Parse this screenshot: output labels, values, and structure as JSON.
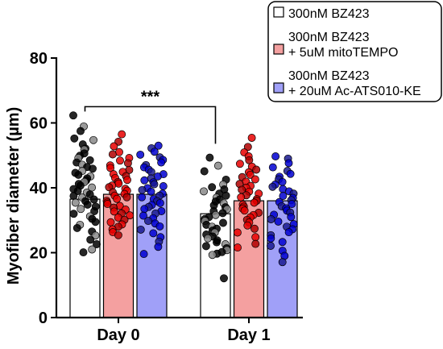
{
  "chart_data": {
    "type": "bar",
    "title": "",
    "xlabel": "",
    "ylabel": "Myofiber diameter  (µm)",
    "ylim": [
      0,
      80
    ],
    "yticks": [
      0,
      20,
      40,
      60,
      80
    ],
    "categories": [
      "Day 0",
      "Day 1"
    ],
    "series": [
      {
        "name": "300nM BZ423",
        "legend_lines": [
          "300nM BZ423"
        ],
        "values": [
          36.5,
          32.0
        ],
        "color": "#ffffff",
        "point_fill": "#000000",
        "point_alt_fill": "#888888",
        "points": [
          [
            62.3,
            58.9,
            57.5,
            55.2,
            54.7,
            53.4,
            52.1,
            51.8,
            50.6,
            49.9,
            49.2,
            48.5,
            47.8,
            47.1,
            46.4,
            45.9,
            45.2,
            44.6,
            44.0,
            43.5,
            42.9,
            42.3,
            41.8,
            41.2,
            40.7,
            40.1,
            39.6,
            39.0,
            38.5,
            38.0,
            37.5,
            37.0,
            36.4,
            35.9,
            35.4,
            34.8,
            34.2,
            33.5,
            32.8,
            32.0,
            31.2,
            30.4,
            29.5,
            28.6,
            27.6,
            26.5,
            25.3,
            24.0,
            22.6,
            21.0,
            20.1
          ],
          [
            49.3,
            46.8,
            45.1,
            42.5,
            41.0,
            40.2,
            39.5,
            38.9,
            38.2,
            37.6,
            37.0,
            36.4,
            35.8,
            35.2,
            34.6,
            34.0,
            33.4,
            32.8,
            32.2,
            31.6,
            31.0,
            30.4,
            29.8,
            29.2,
            28.6,
            28.0,
            27.4,
            26.8,
            26.2,
            25.6,
            25.0,
            24.4,
            23.8,
            23.2,
            22.6,
            22.0,
            21.4,
            20.8,
            20.2,
            19.7,
            19.3,
            12.1
          ]
        ]
      },
      {
        "name": "300nM BZ423 + 5uM mitoTEMPO",
        "legend_lines": [
          "300nM BZ423",
          "+ 5uM mitoTEMPO"
        ],
        "values": [
          38.0,
          36.0
        ],
        "color": "#f4a0a0",
        "point_fill": "#e60000",
        "point_alt_fill": "#b00000",
        "points": [
          [
            56.5,
            54.2,
            52.8,
            51.0,
            50.3,
            49.2,
            48.4,
            47.6,
            46.9,
            46.1,
            45.5,
            44.9,
            44.2,
            43.6,
            43.0,
            42.4,
            41.8,
            41.3,
            40.7,
            40.2,
            39.7,
            39.1,
            38.6,
            38.1,
            37.6,
            37.1,
            36.6,
            36.0,
            35.5,
            35.0,
            34.4,
            33.9,
            33.3,
            32.7,
            32.1,
            31.5,
            30.8,
            30.1,
            29.4,
            28.7,
            28.0,
            27.2,
            26.3,
            25.4
          ],
          [
            55.4,
            52.6,
            50.9,
            49.7,
            48.5,
            47.4,
            46.5,
            45.6,
            44.8,
            44.0,
            43.3,
            42.6,
            41.9,
            41.2,
            40.6,
            40.0,
            39.4,
            38.8,
            38.2,
            37.7,
            37.1,
            36.5,
            36.0,
            35.4,
            34.8,
            34.2,
            33.6,
            33.0,
            32.3,
            31.6,
            30.9,
            30.1,
            29.3,
            28.4,
            27.4,
            26.2,
            24.8,
            22.7,
            21.6
          ]
        ]
      },
      {
        "name": "300nM BZ423 + 20uM Ac-ATS010-KE",
        "legend_lines": [
          "300nM BZ423",
          "+ 20uM Ac-ATS010-KE"
        ],
        "values": [
          38.0,
          36.0
        ],
        "color": "#a0a0f8",
        "point_fill": "#0000d0",
        "point_alt_fill": "#1a1a90",
        "points": [
          [
            53.0,
            52.2,
            51.1,
            50.2,
            49.4,
            48.6,
            47.8,
            47.0,
            46.3,
            45.6,
            44.9,
            44.2,
            43.5,
            42.9,
            42.3,
            41.7,
            41.1,
            40.5,
            39.9,
            39.3,
            38.8,
            38.2,
            37.6,
            37.1,
            36.5,
            35.9,
            35.3,
            34.7,
            34.1,
            33.5,
            32.8,
            32.1,
            31.4,
            30.6,
            29.8,
            29.0,
            28.1,
            27.1,
            26.0,
            24.8,
            23.4,
            21.8,
            19.6
          ],
          [
            49.7,
            49.0,
            47.6,
            46.3,
            45.2,
            44.3,
            43.4,
            42.6,
            41.8,
            41.0,
            40.3,
            39.6,
            38.9,
            38.2,
            37.5,
            36.9,
            36.2,
            35.6,
            35.0,
            34.3,
            33.7,
            33.0,
            32.4,
            31.7,
            31.0,
            30.3,
            29.6,
            28.8,
            28.0,
            27.2,
            26.3,
            25.4,
            24.4,
            23.3,
            22.1,
            20.6,
            19.0,
            17.1
          ]
        ]
      }
    ],
    "significance": [
      {
        "label": "***",
        "from": [
          0,
          0
        ],
        "to": [
          1,
          0
        ],
        "y": 65
      }
    ],
    "legend_position": "top-right",
    "grid": false
  }
}
